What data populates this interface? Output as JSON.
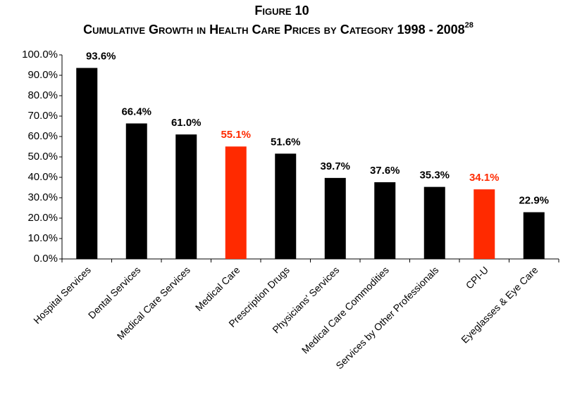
{
  "chart_data": {
    "type": "bar",
    "title": "Figure 10",
    "subtitle": "Cumulative Growth in Health Care Prices by Category 1998 - 2008",
    "subtitle_superscript": "28",
    "categories": [
      "Hospital Services",
      "Dental Services",
      "Medical Care Services",
      "Medical Care",
      "Prescription Drugs",
      "Physicians' Services",
      "Medical Care Commodities",
      "Services by Other Professionals",
      "CPI-U",
      "Eyeglasses & Eye Care"
    ],
    "values": [
      93.6,
      66.4,
      61.0,
      55.1,
      51.6,
      39.7,
      37.6,
      35.3,
      34.1,
      22.9
    ],
    "value_labels": [
      "93.6%",
      "66.4%",
      "61.0%",
      "55.1%",
      "51.6%",
      "39.7%",
      "37.6%",
      "35.3%",
      "34.1%",
      "22.9%"
    ],
    "colors": [
      "#000000",
      "#000000",
      "#000000",
      "#ff2a00",
      "#000000",
      "#000000",
      "#000000",
      "#000000",
      "#ff2a00",
      "#000000"
    ],
    "ylim": [
      0,
      100
    ],
    "yticks": [
      {
        "value": 0,
        "label": "0.0%"
      },
      {
        "value": 10,
        "label": "10.0%"
      },
      {
        "value": 20,
        "label": "20.0%"
      },
      {
        "value": 30,
        "label": "30.0%"
      },
      {
        "value": 40,
        "label": "40.0%"
      },
      {
        "value": 50,
        "label": "50.0%"
      },
      {
        "value": 60,
        "label": "60.0%"
      },
      {
        "value": 70,
        "label": "70.0%"
      },
      {
        "value": 80,
        "label": "80.0%"
      },
      {
        "value": 90,
        "label": "90.0%"
      },
      {
        "value": 100,
        "label": "100.0%"
      }
    ],
    "grid": false
  }
}
